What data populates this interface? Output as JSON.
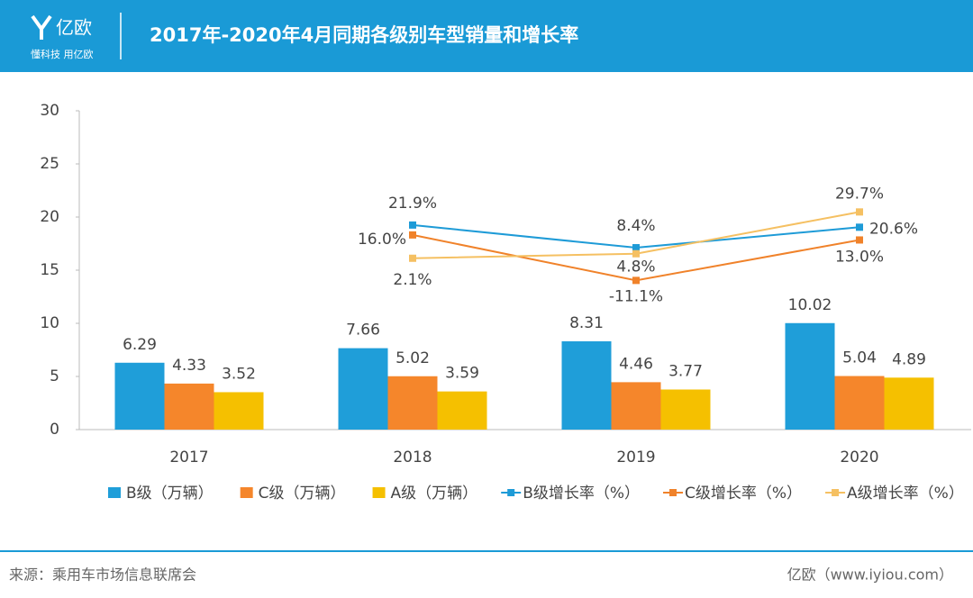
{
  "header": {
    "logo": "亿欧",
    "slogan": "懂科技 用亿欧"
  },
  "chart_data": {
    "type": "bar",
    "title": "2017年-2020年4月同期各级别车型销量和增长率",
    "categories": [
      "2017",
      "2018",
      "2019",
      "2020"
    ],
    "ylim": [
      0,
      30
    ],
    "yticks": [
      0,
      5,
      10,
      15,
      20,
      25,
      30
    ],
    "y2lim": [
      -100,
      90
    ],
    "series": [
      {
        "name": "B级（万辆）",
        "type": "bar",
        "color": "#1f9ed9",
        "values": [
          6.29,
          7.66,
          8.31,
          10.02
        ]
      },
      {
        "name": "C级（万辆）",
        "type": "bar",
        "color": "#f5862b",
        "values": [
          4.33,
          5.02,
          4.46,
          5.04
        ]
      },
      {
        "name": "A级（万辆）",
        "type": "bar",
        "color": "#f5c000",
        "values": [
          3.52,
          3.59,
          3.77,
          4.89
        ]
      },
      {
        "name": "B级增长率（%）",
        "type": "line",
        "axis": "y2",
        "color": "#1e9bd7",
        "values": [
          null,
          21.9,
          8.4,
          20.6
        ],
        "value_labels": [
          null,
          "21.9%",
          "8.4%",
          "20.6%"
        ]
      },
      {
        "name": "C级增长率（%）",
        "type": "line",
        "axis": "y2",
        "color": "#f0822a",
        "values": [
          null,
          16.0,
          -11.1,
          13.0
        ],
        "value_labels": [
          null,
          "16.0%",
          "-11.1%",
          "13.0%"
        ]
      },
      {
        "name": "A级增长率（%）",
        "type": "line",
        "axis": "y2",
        "color": "#f5c062",
        "values": [
          null,
          2.1,
          4.8,
          29.7
        ],
        "value_labels": [
          null,
          "2.1%",
          "4.8%",
          "29.7%"
        ]
      }
    ]
  },
  "footer": {
    "source": "来源：乘用车市场信息联席会",
    "brand": "亿欧（www.iyiou.com）"
  }
}
